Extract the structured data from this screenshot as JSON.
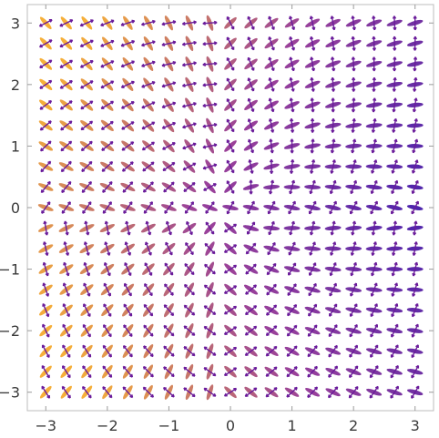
{
  "chart_data": {
    "type": "vector_field",
    "title": "",
    "xlabel": "",
    "ylabel": "",
    "xlim": [
      -3.3,
      3.3
    ],
    "ylim": [
      -3.3,
      3.3
    ],
    "x_ticks": [
      -3,
      -2,
      -1,
      0,
      1,
      2,
      3
    ],
    "y_ticks": [
      -3,
      -2,
      -1,
      0,
      1,
      2,
      3
    ],
    "x_tick_labels": [
      "−3",
      "−2",
      "−1",
      "0",
      "1",
      "2",
      "3"
    ],
    "y_tick_labels": [
      "−3",
      "−2",
      "−1",
      "0",
      "1",
      "2",
      "3"
    ],
    "grid": false,
    "legend": "none",
    "grid_sampling": {
      "min": -3,
      "max": 3,
      "points_per_axis": 19
    },
    "color_scheme": {
      "low_magnitude": "#3a0ca3",
      "mid_magnitude": "#8e2c8f",
      "high_magnitude": "#f5a623"
    },
    "description_of_markers": "each grid point carries a small two-headed purple arrow cross plus an elongated colored blob oriented along the field"
  }
}
